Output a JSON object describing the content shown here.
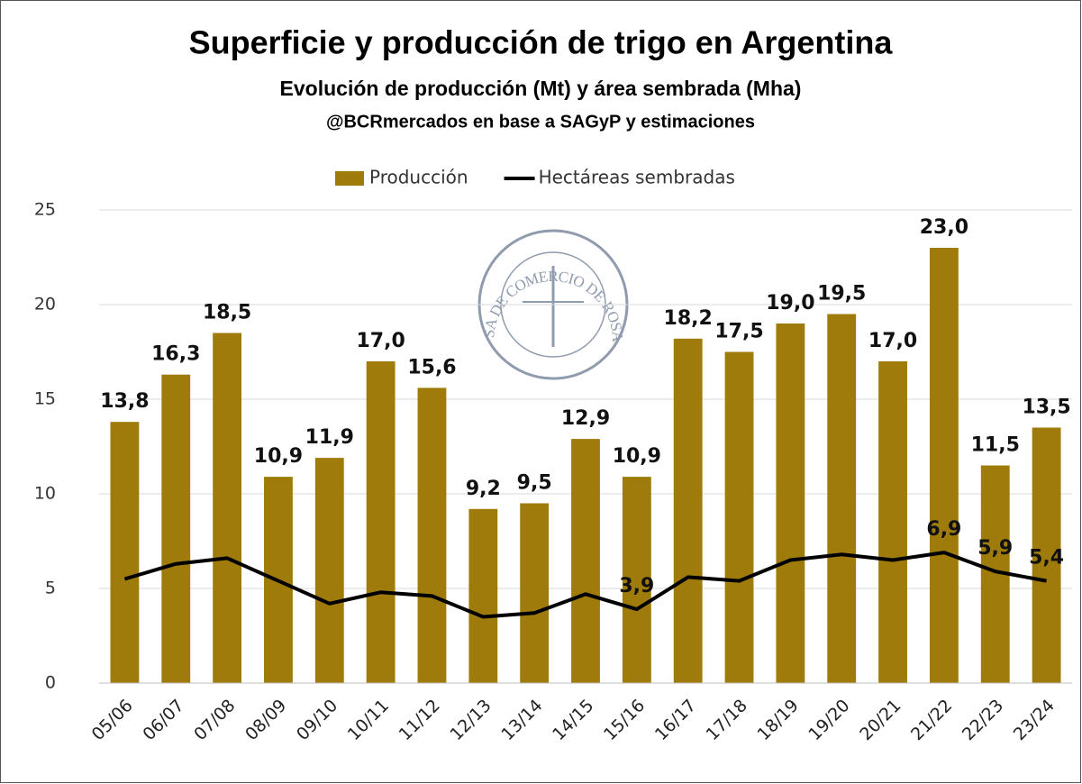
{
  "chart_data": {
    "type": "bar_line",
    "title": "Superficie y producción de trigo en Argentina",
    "subtitle": "Evolución de producción (Mt) y área sembrada (Mha)",
    "source": "@BCRmercados en base a SAGyP y estimaciones",
    "watermark": "BOLSA DE COMERCIO DE ROSARIO",
    "categories": [
      "05/06",
      "06/07",
      "07/08",
      "08/09",
      "09/10",
      "10/11",
      "11/12",
      "12/13",
      "13/14",
      "14/15",
      "15/16",
      "16/17",
      "17/18",
      "18/19",
      "19/20",
      "20/21",
      "21/22",
      "22/23",
      "23/24"
    ],
    "series": [
      {
        "name": "Producción",
        "type": "bar",
        "color": "#9e7b0b",
        "values": [
          13.8,
          16.3,
          18.5,
          10.9,
          11.9,
          17.0,
          15.6,
          9.2,
          9.5,
          12.9,
          10.9,
          18.2,
          17.5,
          19.0,
          19.5,
          17.0,
          23.0,
          11.5,
          13.5
        ],
        "value_labels": [
          "13,8",
          "16,3",
          "18,5",
          "10,9",
          "11,9",
          "17,0",
          "15,6",
          "9,2",
          "9,5",
          "12,9",
          "10,9",
          "18,2",
          "17,5",
          "19,0",
          "19,5",
          "17,0",
          "23,0",
          "11,5",
          "13,5"
        ]
      },
      {
        "name": "Hectáreas sembradas",
        "type": "line",
        "color": "#000000",
        "values": [
          5.5,
          6.3,
          6.6,
          5.4,
          4.2,
          4.8,
          4.6,
          3.5,
          3.7,
          4.7,
          3.9,
          5.6,
          5.4,
          6.5,
          6.8,
          6.5,
          6.9,
          5.9,
          5.4
        ],
        "value_labels": [
          null,
          null,
          null,
          null,
          null,
          null,
          null,
          null,
          null,
          null,
          "3,9",
          null,
          null,
          null,
          null,
          null,
          "6,9",
          "5,9",
          "5,4"
        ]
      }
    ],
    "ylim": [
      0,
      25
    ],
    "yticks": [
      0,
      5,
      10,
      15,
      20,
      25
    ],
    "grid": true,
    "legend": "top"
  }
}
